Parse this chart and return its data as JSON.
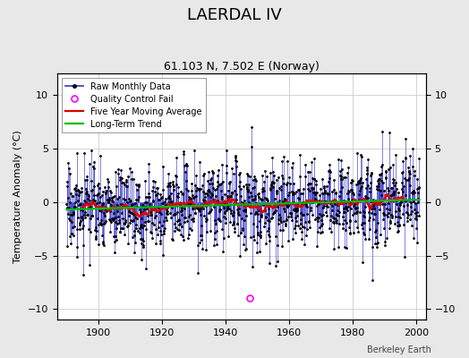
{
  "title": "LAERDAL IV",
  "subtitle": "61.103 N, 7.502 E (Norway)",
  "ylabel": "Temperature Anomaly (°C)",
  "credit": "Berkeley Earth",
  "xlim": [
    1887,
    2003
  ],
  "ylim": [
    -11,
    12
  ],
  "yticks": [
    -10,
    -5,
    0,
    5,
    10
  ],
  "xticks": [
    1900,
    1920,
    1940,
    1960,
    1980,
    2000
  ],
  "start_year": 1890,
  "end_year": 2001,
  "seed": 17,
  "line_color": "#3333cc",
  "ma_color": "#dd0000",
  "trend_color": "#00bb00",
  "qc_color": "#ff00ff",
  "plot_bg_color": "#ffffff",
  "fig_bg_color": "#e8e8e8",
  "grid_color": "#cccccc"
}
